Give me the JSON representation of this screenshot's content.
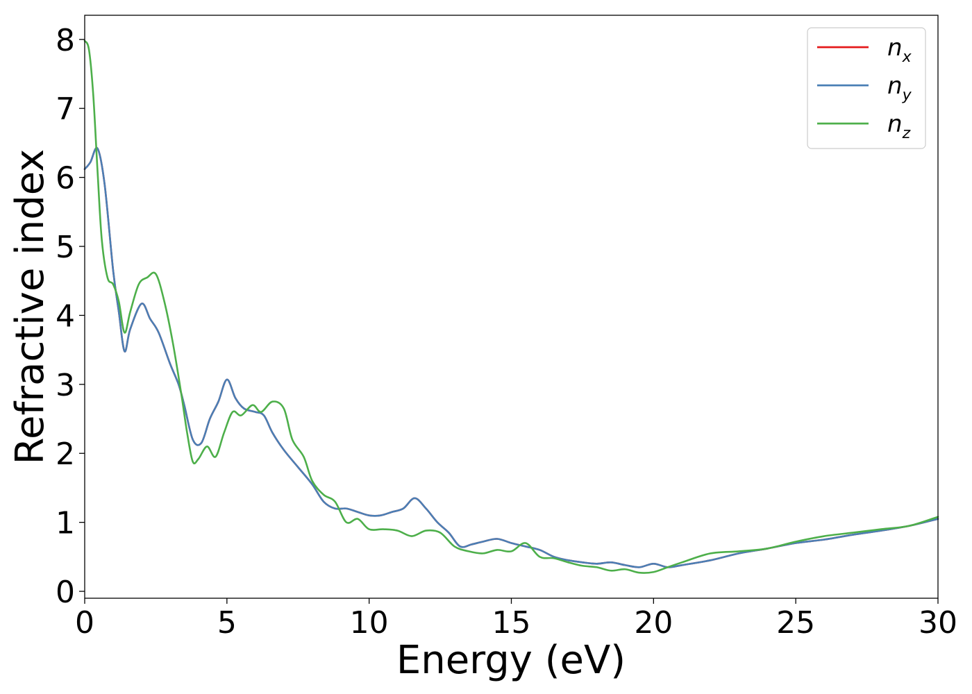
{
  "chart_data": {
    "type": "line",
    "xlabel": "Energy (eV)",
    "ylabel": "Refractive index",
    "xlim": [
      0,
      30
    ],
    "ylim": [
      -0.1,
      8.35
    ],
    "xticks": [
      0,
      5,
      10,
      15,
      20,
      25,
      30
    ],
    "xtick_labels": [
      "0",
      "5",
      "10",
      "15",
      "20",
      "25",
      "30"
    ],
    "yticks": [
      0,
      1,
      2,
      3,
      4,
      5,
      6,
      7,
      8
    ],
    "ytick_labels": [
      "0",
      "1",
      "2",
      "3",
      "4",
      "5",
      "6",
      "7",
      "8"
    ],
    "grid": false,
    "legend_position": "top-right",
    "series": [
      {
        "name": "n_x",
        "label_base": "n",
        "label_sub": "x",
        "color": "#e41a1c",
        "x": [
          0,
          0.2,
          0.45,
          0.7,
          1.0,
          1.2,
          1.4,
          1.6,
          2.0,
          2.3,
          2.6,
          3.0,
          3.3,
          3.5,
          3.8,
          4.1,
          4.4,
          4.7,
          5.0,
          5.3,
          5.6,
          6.0,
          6.3,
          6.6,
          7.0,
          7.5,
          8.0,
          8.4,
          8.8,
          9.2,
          9.6,
          10.0,
          10.4,
          10.8,
          11.2,
          11.6,
          12.0,
          12.4,
          12.8,
          13.2,
          13.6,
          14.0,
          14.5,
          15.0,
          15.5,
          16.0,
          16.5,
          17.0,
          17.5,
          18.0,
          18.5,
          19.0,
          19.5,
          20.0,
          20.5,
          21.0,
          22.0,
          23.0,
          24.0,
          25.0,
          26.0,
          27.0,
          28.0,
          29.0,
          30.0
        ],
        "y": [
          6.12,
          6.22,
          6.42,
          5.9,
          4.65,
          4.05,
          3.48,
          3.8,
          4.17,
          3.95,
          3.75,
          3.3,
          3.0,
          2.7,
          2.2,
          2.15,
          2.5,
          2.75,
          3.07,
          2.8,
          2.65,
          2.6,
          2.55,
          2.3,
          2.05,
          1.8,
          1.55,
          1.3,
          1.2,
          1.2,
          1.15,
          1.1,
          1.1,
          1.15,
          1.2,
          1.35,
          1.2,
          1.0,
          0.85,
          0.65,
          0.68,
          0.72,
          0.76,
          0.7,
          0.65,
          0.6,
          0.5,
          0.45,
          0.42,
          0.4,
          0.42,
          0.38,
          0.35,
          0.4,
          0.35,
          0.38,
          0.45,
          0.55,
          0.62,
          0.7,
          0.75,
          0.82,
          0.88,
          0.95,
          1.05
        ]
      },
      {
        "name": "n_y",
        "label_base": "n",
        "label_sub": "y",
        "color": "#4a7fb5",
        "x": [
          0,
          0.2,
          0.45,
          0.7,
          1.0,
          1.2,
          1.4,
          1.6,
          2.0,
          2.3,
          2.6,
          3.0,
          3.3,
          3.5,
          3.8,
          4.1,
          4.4,
          4.7,
          5.0,
          5.3,
          5.6,
          6.0,
          6.3,
          6.6,
          7.0,
          7.5,
          8.0,
          8.4,
          8.8,
          9.2,
          9.6,
          10.0,
          10.4,
          10.8,
          11.2,
          11.6,
          12.0,
          12.4,
          12.8,
          13.2,
          13.6,
          14.0,
          14.5,
          15.0,
          15.5,
          16.0,
          16.5,
          17.0,
          17.5,
          18.0,
          18.5,
          19.0,
          19.5,
          20.0,
          20.5,
          21.0,
          22.0,
          23.0,
          24.0,
          25.0,
          26.0,
          27.0,
          28.0,
          29.0,
          30.0
        ],
        "y": [
          6.12,
          6.22,
          6.42,
          5.9,
          4.65,
          4.05,
          3.48,
          3.8,
          4.17,
          3.95,
          3.75,
          3.3,
          3.0,
          2.7,
          2.2,
          2.15,
          2.5,
          2.75,
          3.07,
          2.8,
          2.65,
          2.6,
          2.55,
          2.3,
          2.05,
          1.8,
          1.55,
          1.3,
          1.2,
          1.2,
          1.15,
          1.1,
          1.1,
          1.15,
          1.2,
          1.35,
          1.2,
          1.0,
          0.85,
          0.65,
          0.68,
          0.72,
          0.76,
          0.7,
          0.65,
          0.6,
          0.5,
          0.45,
          0.42,
          0.4,
          0.42,
          0.38,
          0.35,
          0.4,
          0.35,
          0.38,
          0.45,
          0.55,
          0.62,
          0.7,
          0.75,
          0.82,
          0.88,
          0.95,
          1.05
        ]
      },
      {
        "name": "n_z",
        "label_base": "n",
        "label_sub": "z",
        "color": "#4daf4a",
        "x": [
          0,
          0.15,
          0.3,
          0.45,
          0.6,
          0.8,
          1.0,
          1.2,
          1.4,
          1.6,
          1.9,
          2.2,
          2.5,
          2.8,
          3.1,
          3.4,
          3.6,
          3.8,
          4.0,
          4.3,
          4.6,
          4.9,
          5.2,
          5.5,
          5.9,
          6.2,
          6.6,
          7.0,
          7.3,
          7.7,
          8.0,
          8.4,
          8.8,
          9.2,
          9.6,
          10.0,
          10.5,
          11.0,
          11.5,
          12.0,
          12.5,
          13.0,
          13.5,
          14.0,
          14.5,
          15.0,
          15.5,
          16.0,
          16.5,
          17.0,
          17.5,
          18.0,
          18.5,
          19.0,
          19.5,
          20.0,
          20.5,
          21.0,
          22.0,
          23.0,
          24.0,
          25.0,
          26.0,
          27.0,
          28.0,
          29.0,
          30.0
        ],
        "y": [
          7.98,
          7.85,
          7.2,
          6.1,
          5.1,
          4.55,
          4.45,
          4.2,
          3.75,
          4.05,
          4.45,
          4.55,
          4.6,
          4.2,
          3.6,
          2.85,
          2.3,
          1.88,
          1.92,
          2.1,
          1.95,
          2.3,
          2.6,
          2.55,
          2.7,
          2.6,
          2.75,
          2.65,
          2.2,
          1.95,
          1.6,
          1.4,
          1.3,
          1.0,
          1.05,
          0.9,
          0.9,
          0.88,
          0.8,
          0.88,
          0.85,
          0.65,
          0.58,
          0.55,
          0.6,
          0.58,
          0.7,
          0.5,
          0.48,
          0.42,
          0.37,
          0.35,
          0.3,
          0.32,
          0.27,
          0.28,
          0.35,
          0.42,
          0.55,
          0.58,
          0.62,
          0.72,
          0.8,
          0.85,
          0.9,
          0.95,
          1.08
        ]
      }
    ]
  }
}
